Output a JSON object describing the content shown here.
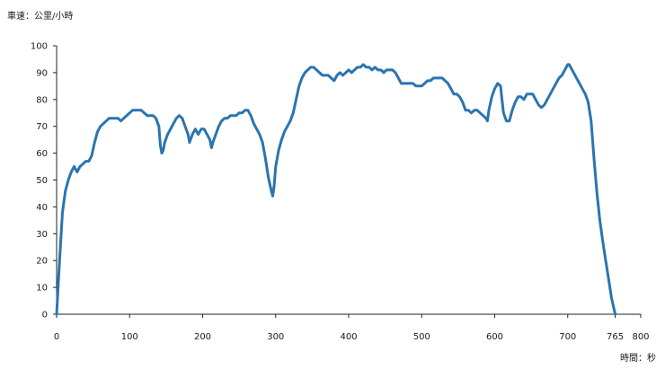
{
  "chart_data": {
    "type": "line",
    "ylabel": "車速：公里/小時",
    "xlabel": "時間：秒",
    "xlim": [
      0,
      800
    ],
    "ylim": [
      0,
      100
    ],
    "x_ticks": [
      "0",
      "100",
      "200",
      "300",
      "400",
      "500",
      "600",
      "700",
      "765",
      "800"
    ],
    "y_ticks": [
      "0",
      "10",
      "20",
      "30",
      "40",
      "50",
      "60",
      "70",
      "80",
      "90",
      "100"
    ],
    "grid": false,
    "colors": {
      "line": "#2b74b0",
      "axis": "#222222"
    },
    "series": [
      {
        "points": [
          [
            0,
            0
          ],
          [
            4,
            20
          ],
          [
            8,
            38
          ],
          [
            12,
            46
          ],
          [
            16,
            50
          ],
          [
            20,
            53
          ],
          [
            24,
            55
          ],
          [
            28,
            53
          ],
          [
            32,
            55
          ],
          [
            36,
            56
          ],
          [
            40,
            57
          ],
          [
            44,
            57
          ],
          [
            48,
            59
          ],
          [
            52,
            64
          ],
          [
            56,
            68
          ],
          [
            60,
            70
          ],
          [
            64,
            71
          ],
          [
            68,
            72
          ],
          [
            72,
            73
          ],
          [
            76,
            73
          ],
          [
            80,
            73
          ],
          [
            84,
            73
          ],
          [
            88,
            72
          ],
          [
            92,
            73
          ],
          [
            96,
            74
          ],
          [
            100,
            75
          ],
          [
            104,
            76
          ],
          [
            108,
            76
          ],
          [
            112,
            76
          ],
          [
            116,
            76
          ],
          [
            120,
            75
          ],
          [
            124,
            74
          ],
          [
            128,
            74
          ],
          [
            132,
            74
          ],
          [
            136,
            73
          ],
          [
            140,
            70
          ],
          [
            142,
            63
          ],
          [
            144,
            60
          ],
          [
            146,
            61
          ],
          [
            148,
            64
          ],
          [
            152,
            67
          ],
          [
            156,
            69
          ],
          [
            160,
            71
          ],
          [
            164,
            73
          ],
          [
            168,
            74
          ],
          [
            172,
            73
          ],
          [
            176,
            70
          ],
          [
            180,
            67
          ],
          [
            182,
            64
          ],
          [
            186,
            67
          ],
          [
            190,
            69
          ],
          [
            194,
            67
          ],
          [
            198,
            69
          ],
          [
            202,
            69
          ],
          [
            206,
            67
          ],
          [
            210,
            65
          ],
          [
            212,
            62
          ],
          [
            214,
            64
          ],
          [
            218,
            67
          ],
          [
            222,
            70
          ],
          [
            226,
            72
          ],
          [
            230,
            73
          ],
          [
            234,
            73
          ],
          [
            238,
            74
          ],
          [
            242,
            74
          ],
          [
            246,
            74
          ],
          [
            250,
            75
          ],
          [
            254,
            75
          ],
          [
            258,
            76
          ],
          [
            262,
            76
          ],
          [
            266,
            74
          ],
          [
            270,
            71
          ],
          [
            274,
            69
          ],
          [
            278,
            67
          ],
          [
            282,
            64
          ],
          [
            286,
            58
          ],
          [
            290,
            51
          ],
          [
            294,
            46
          ],
          [
            296,
            44
          ],
          [
            298,
            48
          ],
          [
            300,
            55
          ],
          [
            304,
            61
          ],
          [
            308,
            65
          ],
          [
            312,
            68
          ],
          [
            316,
            70
          ],
          [
            320,
            72
          ],
          [
            324,
            75
          ],
          [
            328,
            80
          ],
          [
            332,
            85
          ],
          [
            336,
            88
          ],
          [
            340,
            90
          ],
          [
            344,
            91
          ],
          [
            348,
            92
          ],
          [
            352,
            92
          ],
          [
            356,
            91
          ],
          [
            360,
            90
          ],
          [
            364,
            89
          ],
          [
            368,
            89
          ],
          [
            372,
            89
          ],
          [
            376,
            88
          ],
          [
            380,
            87
          ],
          [
            384,
            89
          ],
          [
            388,
            90
          ],
          [
            392,
            89
          ],
          [
            396,
            90
          ],
          [
            400,
            91
          ],
          [
            404,
            90
          ],
          [
            408,
            91
          ],
          [
            412,
            92
          ],
          [
            416,
            92
          ],
          [
            420,
            93
          ],
          [
            424,
            92
          ],
          [
            428,
            92
          ],
          [
            432,
            91
          ],
          [
            436,
            92
          ],
          [
            440,
            91
          ],
          [
            444,
            91
          ],
          [
            448,
            90
          ],
          [
            452,
            91
          ],
          [
            456,
            91
          ],
          [
            460,
            91
          ],
          [
            464,
            90
          ],
          [
            468,
            88
          ],
          [
            472,
            86
          ],
          [
            476,
            86
          ],
          [
            480,
            86
          ],
          [
            484,
            86
          ],
          [
            488,
            86
          ],
          [
            492,
            85
          ],
          [
            496,
            85
          ],
          [
            500,
            85
          ],
          [
            504,
            86
          ],
          [
            508,
            87
          ],
          [
            512,
            87
          ],
          [
            516,
            88
          ],
          [
            520,
            88
          ],
          [
            524,
            88
          ],
          [
            528,
            88
          ],
          [
            532,
            87
          ],
          [
            536,
            86
          ],
          [
            540,
            84
          ],
          [
            544,
            82
          ],
          [
            548,
            82
          ],
          [
            552,
            81
          ],
          [
            556,
            79
          ],
          [
            560,
            76
          ],
          [
            564,
            76
          ],
          [
            568,
            75
          ],
          [
            572,
            76
          ],
          [
            576,
            76
          ],
          [
            580,
            75
          ],
          [
            584,
            74
          ],
          [
            588,
            73
          ],
          [
            590,
            72
          ],
          [
            592,
            76
          ],
          [
            596,
            81
          ],
          [
            600,
            84
          ],
          [
            604,
            86
          ],
          [
            608,
            85
          ],
          [
            610,
            80
          ],
          [
            612,
            75
          ],
          [
            616,
            72
          ],
          [
            620,
            72
          ],
          [
            624,
            76
          ],
          [
            628,
            79
          ],
          [
            632,
            81
          ],
          [
            636,
            81
          ],
          [
            640,
            80
          ],
          [
            644,
            82
          ],
          [
            648,
            82
          ],
          [
            652,
            82
          ],
          [
            656,
            80
          ],
          [
            660,
            78
          ],
          [
            664,
            77
          ],
          [
            668,
            78
          ],
          [
            672,
            80
          ],
          [
            676,
            82
          ],
          [
            680,
            84
          ],
          [
            684,
            86
          ],
          [
            688,
            88
          ],
          [
            692,
            89
          ],
          [
            696,
            91
          ],
          [
            700,
            93
          ],
          [
            702,
            93
          ],
          [
            704,
            92
          ],
          [
            708,
            90
          ],
          [
            712,
            88
          ],
          [
            716,
            86
          ],
          [
            720,
            84
          ],
          [
            724,
            82
          ],
          [
            728,
            79
          ],
          [
            732,
            72
          ],
          [
            736,
            58
          ],
          [
            740,
            45
          ],
          [
            744,
            35
          ],
          [
            748,
            27
          ],
          [
            752,
            20
          ],
          [
            756,
            13
          ],
          [
            760,
            6
          ],
          [
            765,
            0
          ]
        ]
      }
    ]
  }
}
